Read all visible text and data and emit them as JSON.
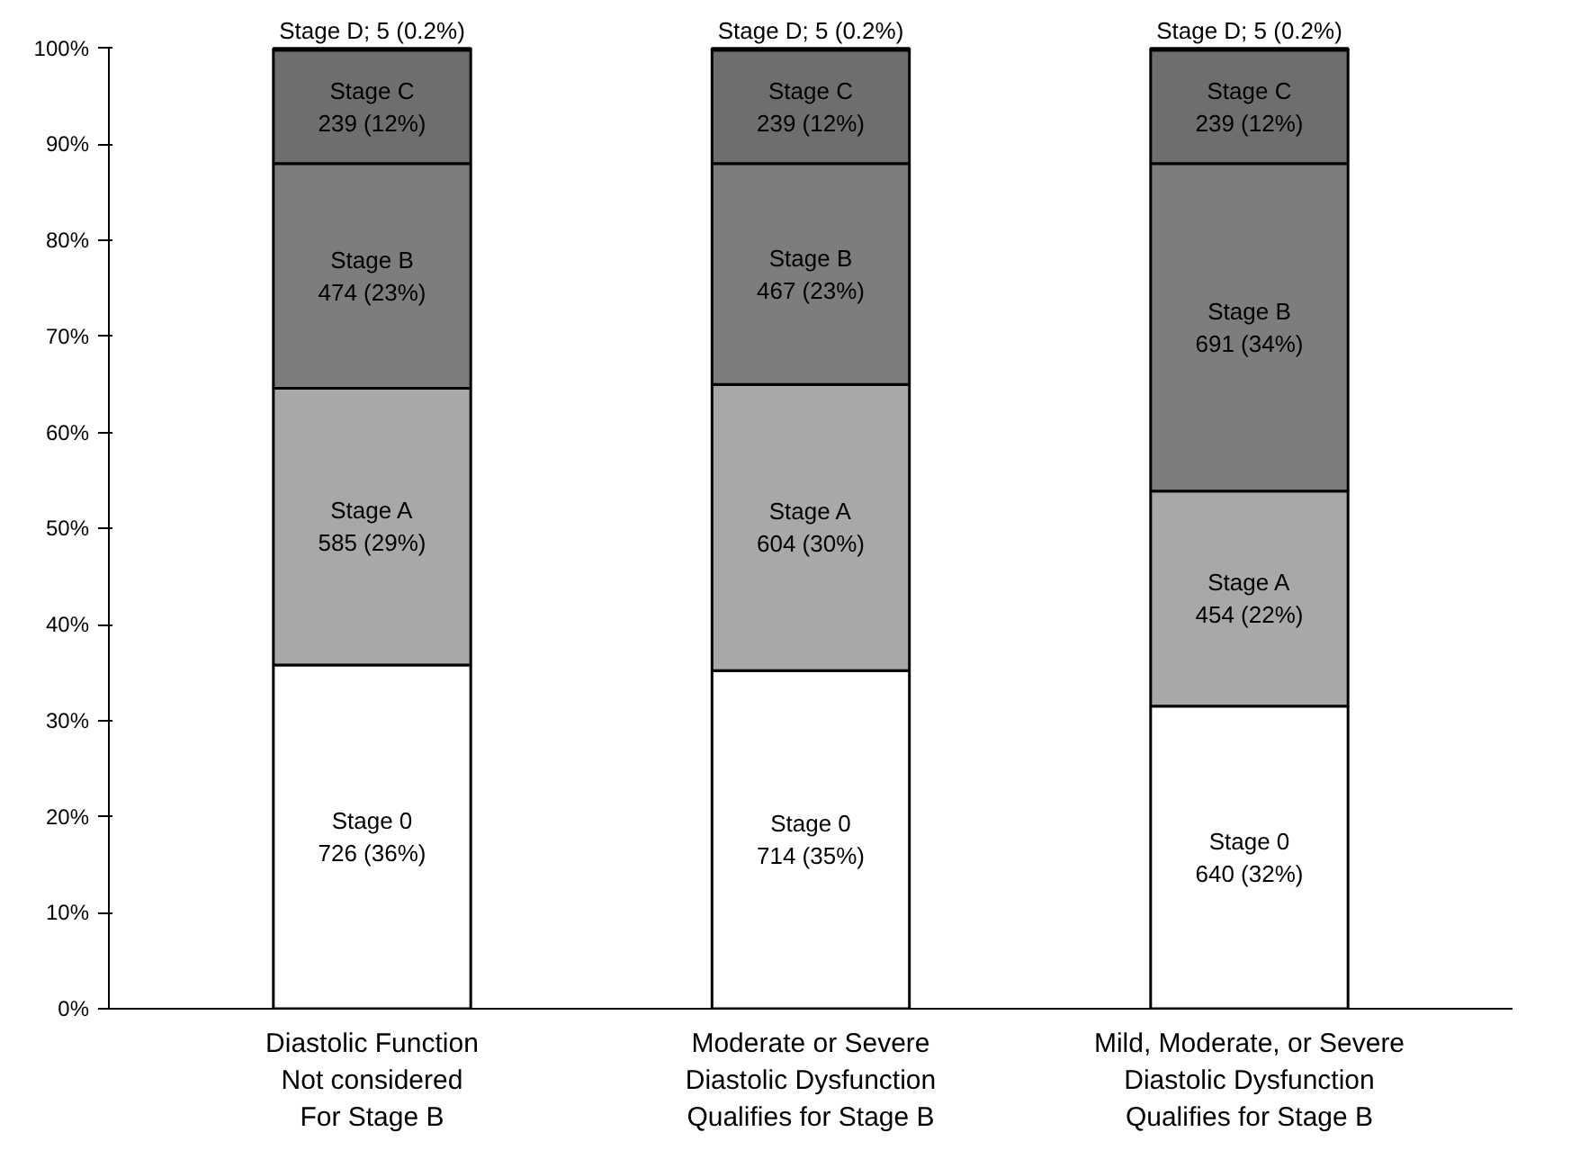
{
  "chart_data": {
    "type": "bar",
    "stacked": true,
    "categories": [
      "Diastolic Function\nNot considered\nFor Stage B",
      "Moderate or Severe\nDiastolic Dysfunction\nQualifies for Stage B",
      "Mild, Moderate, or Severe\nDiastolic Dysfunction\nQualifies for Stage B"
    ],
    "series": [
      {
        "color": "#ffffff",
        "values": [
          35.8,
          35.2,
          31.5
        ],
        "value_labels": [
          "Stage 0\n726 (36%)",
          "Stage 0\n714 (35%)",
          "Stage 0\n640 (32%)"
        ]
      },
      {
        "color": "#a8a8a8",
        "values": [
          28.8,
          29.8,
          22.4
        ],
        "value_labels": [
          "Stage A\n585 (29%)",
          "Stage A\n604 (30%)",
          "Stage A\n454 (22%)"
        ]
      },
      {
        "color": "#7d7d7d",
        "values": [
          23.4,
          23.0,
          34.1
        ],
        "value_labels": [
          "Stage B\n474 (23%)",
          "Stage B\n467 (23%)",
          "Stage B\n691 (34%)"
        ]
      },
      {
        "color": "#6e6e6e",
        "values": [
          11.8,
          11.8,
          11.8
        ],
        "value_labels": [
          "Stage C\n239 (12%)",
          "Stage C\n239 (12%)",
          "Stage C\n239 (12%)"
        ]
      },
      {
        "color": "#222222",
        "values": [
          0.2,
          0.2,
          0.2
        ],
        "value_labels": [
          "Stage D; 5 (0.2%)",
          "Stage D; 5 (0.2%)",
          "Stage D; 5 (0.2%)"
        ]
      }
    ],
    "ylim": [
      0,
      100
    ],
    "yticks": [
      {
        "value": 0,
        "label": "0%"
      },
      {
        "value": 10,
        "label": "10%"
      },
      {
        "value": 20,
        "label": "20%"
      },
      {
        "value": 30,
        "label": "30%"
      },
      {
        "value": 40,
        "label": "40%"
      },
      {
        "value": 50,
        "label": "50%"
      },
      {
        "value": 60,
        "label": "60%"
      },
      {
        "value": 70,
        "label": "70%"
      },
      {
        "value": 80,
        "label": "80%"
      },
      {
        "value": 90,
        "label": "90%"
      },
      {
        "value": 100,
        "label": "100%"
      }
    ],
    "grid": false
  }
}
